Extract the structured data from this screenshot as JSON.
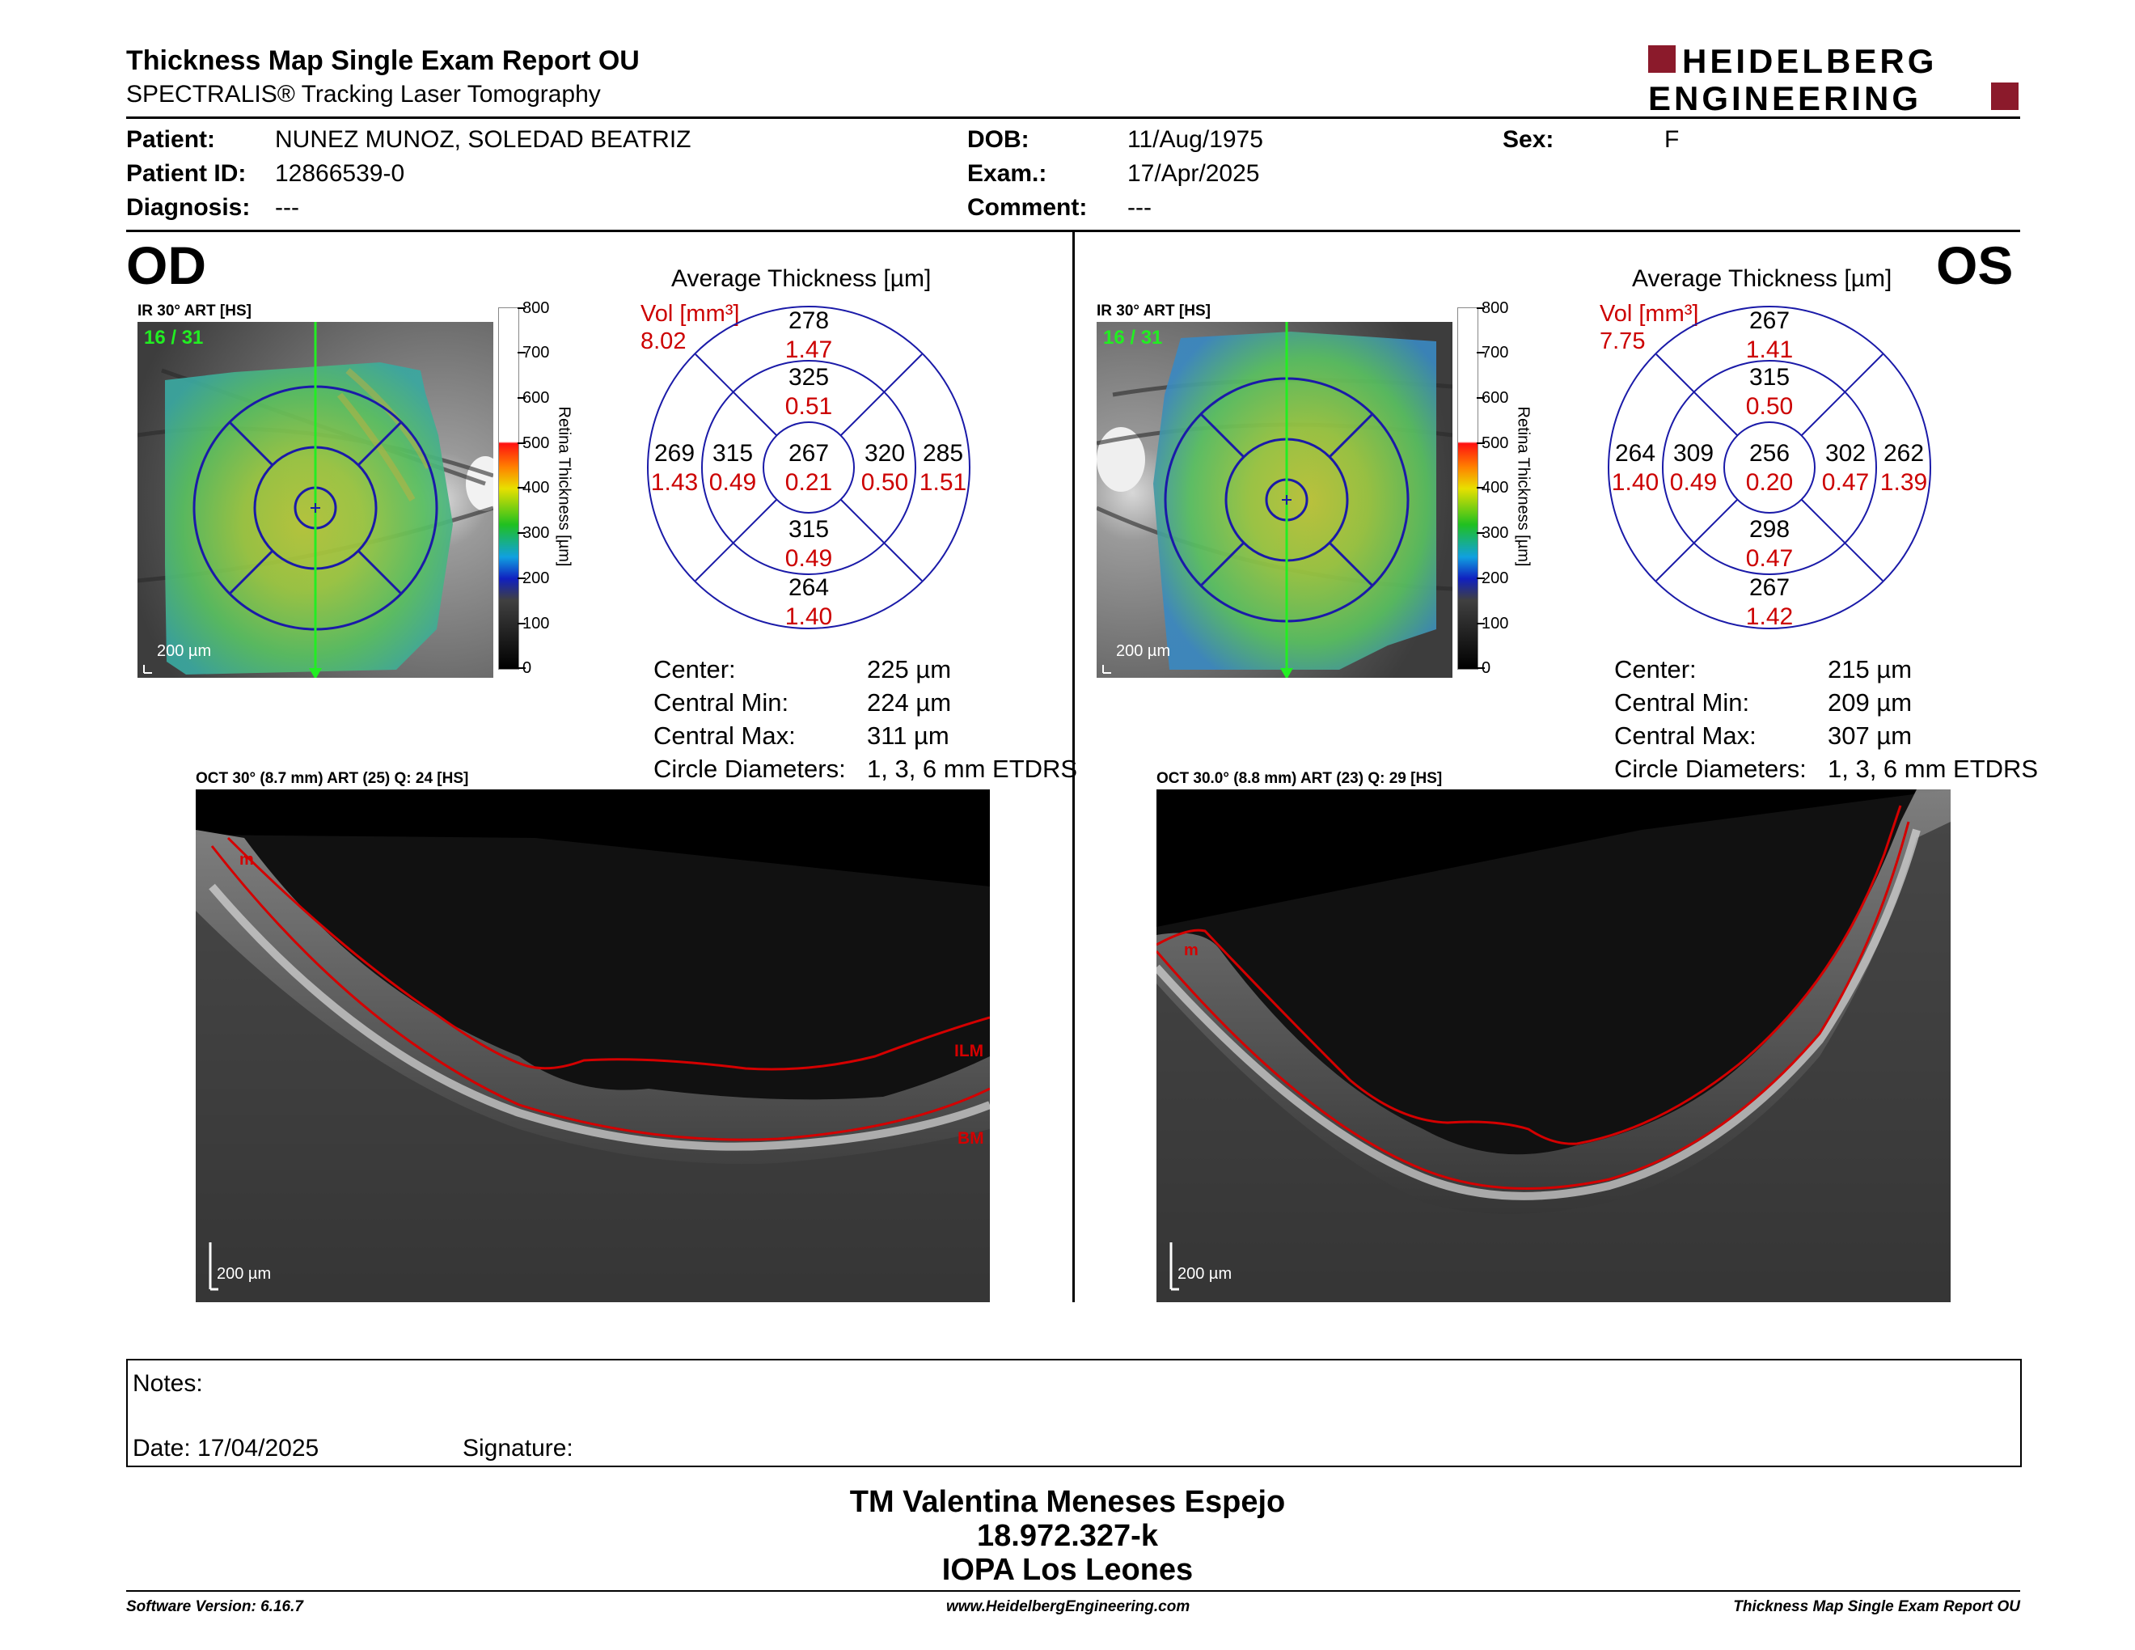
{
  "header": {
    "title": "Thickness Map Single Exam Report OU",
    "subtitle": "SPECTRALIS® Tracking Laser Tomography",
    "logo_line1": "HEIDELBERG",
    "logo_line2": "ENGINEERING",
    "brand_color": "#8b1a2b"
  },
  "patient": {
    "patient_label": "Patient:",
    "patient_value": "NUNEZ MUNOZ, SOLEDAD BEATRIZ",
    "id_label": "Patient ID:",
    "id_value": "12866539-0",
    "diagnosis_label": "Diagnosis:",
    "diagnosis_value": "---",
    "dob_label": "DOB:",
    "dob_value": "11/Aug/1975",
    "exam_label": "Exam.:",
    "exam_value": "17/Apr/2025",
    "comment_label": "Comment:",
    "comment_value": "---",
    "sex_label": "Sex:",
    "sex_value": "F"
  },
  "od": {
    "eye_label": "OD",
    "ir_label": "IR 30° ART [HS]",
    "frame": "16 / 31",
    "scale": "200 µm",
    "colorbar_ticks": [
      "800",
      "700",
      "600",
      "500",
      "400",
      "300",
      "200",
      "100",
      "0"
    ],
    "colorbar_title": "Retina  Thickness [µm]",
    "grid_title": "Average Thickness [µm]",
    "vol_label": "Vol [mm³]",
    "vol_total": "8.02",
    "sectors": {
      "outer_sup": {
        "t": "278",
        "v": "1.47"
      },
      "inner_sup": {
        "t": "325",
        "v": "0.51"
      },
      "outer_left": {
        "t": "269",
        "v": "1.43"
      },
      "inner_left": {
        "t": "315",
        "v": "0.49"
      },
      "center": {
        "t": "267",
        "v": "0.21"
      },
      "inner_right": {
        "t": "320",
        "v": "0.50"
      },
      "outer_right": {
        "t": "285",
        "v": "1.51"
      },
      "inner_inf": {
        "t": "315",
        "v": "0.49"
      },
      "outer_inf": {
        "t": "264",
        "v": "1.40"
      }
    },
    "stats": [
      {
        "label": "Center:",
        "value": "225 µm"
      },
      {
        "label": "Central Min:",
        "value": "224 µm"
      },
      {
        "label": "Central Max:",
        "value": "311 µm"
      },
      {
        "label": "Circle Diameters:",
        "value": "1, 3, 6 mm ETDRS"
      }
    ],
    "oct_label": "OCT 30° (8.7 mm) ART (25) Q: 24 [HS]",
    "oct_scale": "200 µm",
    "seg_ilm": "ILM",
    "seg_bm": "BM",
    "seg_marker": "m"
  },
  "os": {
    "eye_label": "OS",
    "ir_label": "IR 30° ART [HS]",
    "frame": "16 / 31",
    "scale": "200 µm",
    "colorbar_ticks": [
      "800",
      "700",
      "600",
      "500",
      "400",
      "300",
      "200",
      "100",
      "0"
    ],
    "colorbar_title": "Retina  Thickness [µm]",
    "grid_title": "Average Thickness [µm]",
    "vol_label": "Vol [mm³]",
    "vol_total": "7.75",
    "sectors": {
      "outer_sup": {
        "t": "267",
        "v": "1.41"
      },
      "inner_sup": {
        "t": "315",
        "v": "0.50"
      },
      "outer_left": {
        "t": "264",
        "v": "1.40"
      },
      "inner_left": {
        "t": "309",
        "v": "0.49"
      },
      "center": {
        "t": "256",
        "v": "0.20"
      },
      "inner_right": {
        "t": "302",
        "v": "0.47"
      },
      "outer_right": {
        "t": "262",
        "v": "1.39"
      },
      "inner_inf": {
        "t": "298",
        "v": "0.47"
      },
      "outer_inf": {
        "t": "267",
        "v": "1.42"
      }
    },
    "stats": [
      {
        "label": "Center:",
        "value": "215 µm"
      },
      {
        "label": "Central Min:",
        "value": "209 µm"
      },
      {
        "label": "Central Max:",
        "value": "307 µm"
      },
      {
        "label": "Circle Diameters:",
        "value": "1, 3, 6 mm ETDRS"
      }
    ],
    "oct_label": "OCT 30.0° (8.8 mm) ART (23) Q: 29 [HS]",
    "oct_scale": "200 µm",
    "seg_marker": "m"
  },
  "notes": {
    "notes_label": "Notes:",
    "date_label": "Date: 17/04/2025",
    "signature_label": "Signature:"
  },
  "signatory": {
    "name": "TM Valentina Meneses Espejo",
    "rut": "18.972.327-k",
    "org": "IOPA Los Leones"
  },
  "footer": {
    "software": "Software Version: 6.16.7",
    "website": "www.HeidelbergEngineering.com",
    "report_name": "Thickness Map Single Exam Report OU"
  },
  "colors": {
    "grid_blue": "#1a1aa8",
    "volume_red": "#cc0000",
    "frame_green": "#22ee22",
    "seg_red": "#d40000"
  }
}
